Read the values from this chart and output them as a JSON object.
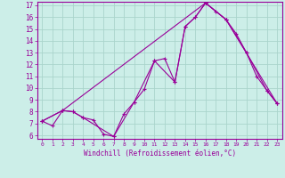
{
  "xlabel": "Windchill (Refroidissement éolien,°C)",
  "bg_color": "#cceee8",
  "grid_color": "#aad4cc",
  "line_color": "#990099",
  "xlim": [
    -0.5,
    23.5
  ],
  "ylim": [
    5.7,
    17.3
  ],
  "xticks": [
    0,
    1,
    2,
    3,
    4,
    5,
    6,
    7,
    8,
    9,
    10,
    11,
    12,
    13,
    14,
    15,
    16,
    17,
    18,
    19,
    20,
    21,
    22,
    23
  ],
  "yticks": [
    6,
    7,
    8,
    9,
    10,
    11,
    12,
    13,
    14,
    15,
    16,
    17
  ],
  "line1_x": [
    0,
    1,
    2,
    3,
    4,
    5,
    6,
    7,
    8,
    9,
    10,
    11,
    12,
    13,
    14,
    15,
    16,
    17,
    18,
    19,
    20,
    21,
    22,
    23
  ],
  "line1_y": [
    7.2,
    6.8,
    8.1,
    8.0,
    7.5,
    7.3,
    6.1,
    5.9,
    7.8,
    8.8,
    9.9,
    12.3,
    12.5,
    10.5,
    15.2,
    16.0,
    17.2,
    16.5,
    15.8,
    14.6,
    13.0,
    11.0,
    9.8,
    8.7
  ],
  "line2_x": [
    0,
    2,
    3,
    4,
    7,
    9,
    11,
    13,
    14,
    15,
    16,
    18,
    20,
    22,
    23
  ],
  "line2_y": [
    7.2,
    8.1,
    8.0,
    7.5,
    5.9,
    8.8,
    12.3,
    10.5,
    15.2,
    16.0,
    17.2,
    15.8,
    13.0,
    9.8,
    8.7
  ],
  "line3_x": [
    0,
    2,
    16,
    18,
    23
  ],
  "line3_y": [
    7.2,
    8.1,
    17.2,
    15.8,
    8.7
  ]
}
